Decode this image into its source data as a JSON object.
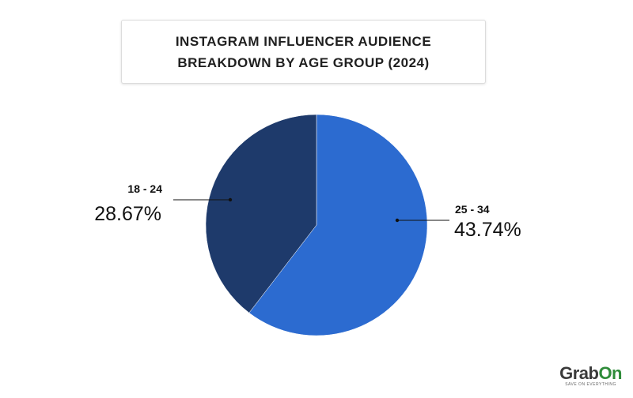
{
  "title": {
    "line1": "INSTAGRAM INFLUENCER AUDIENCE",
    "line2": "BREAKDOWN BY AGE GROUP (2024)"
  },
  "chart_data": {
    "type": "pie",
    "title": "INSTAGRAM INFLUENCER AUDIENCE BREAKDOWN BY AGE GROUP (2024)",
    "categories": [
      "25 - 34",
      "18 - 24"
    ],
    "values": [
      43.74,
      28.67
    ],
    "labels": [
      "43.74%",
      "28.67%"
    ],
    "colors": [
      "#2c6bd0",
      "#1e3a6b"
    ],
    "start_angle": "12 o'clock",
    "direction": "clockwise"
  },
  "logo": {
    "brand_prefix": "Grab",
    "brand_suffix": "On",
    "tagline": "SAVE ON EVERYTHING"
  }
}
